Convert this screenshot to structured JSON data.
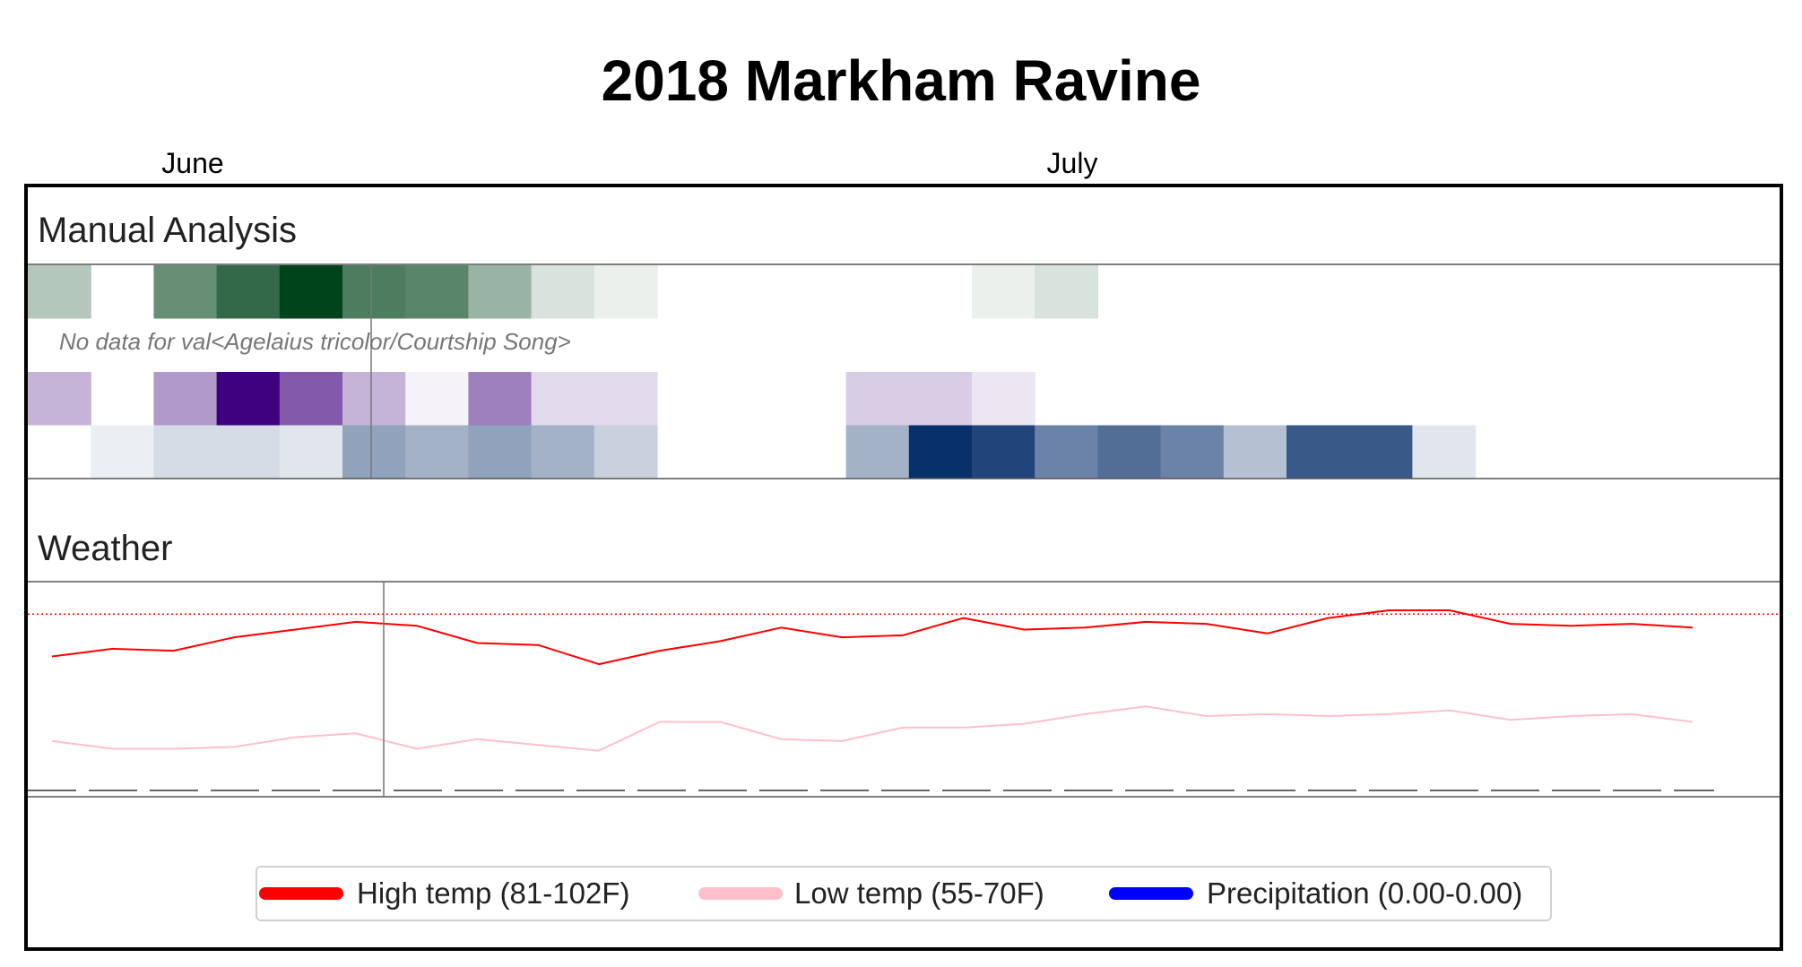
{
  "chart_data": {
    "type": "heatmap",
    "title": "2018 Markham Ravine",
    "month_labels": [
      "June",
      "July"
    ],
    "manual_analysis": {
      "title": "Manual Analysis",
      "no_data_text": "No data for val<Agelaius tricolor/Courtship Song>",
      "rows": [
        {
          "color": "green",
          "values": [
            0.3,
            0.0,
            0.6,
            0.8,
            1.0,
            0.7,
            0.65,
            0.4,
            0.15,
            0.08,
            0.0,
            0.0,
            0.0,
            0.0,
            0.0,
            0.08,
            0.15,
            0.0,
            0.0,
            0.0,
            0.0,
            0.0,
            0.0,
            0.0,
            0.0,
            0.0,
            0.0,
            0.0
          ]
        },
        {
          "color": "none",
          "values": []
        },
        {
          "color": "purple",
          "values": [
            0.3,
            0.0,
            0.4,
            1.0,
            0.65,
            0.3,
            0.05,
            0.5,
            0.15,
            0.15,
            0.0,
            0.0,
            0.0,
            0.2,
            0.2,
            0.1,
            0.0,
            0.0,
            0.0,
            0.0,
            0.0,
            0.0,
            0.0,
            0.0,
            0.0,
            0.0,
            0.0,
            0.0
          ]
        },
        {
          "color": "blue",
          "values": [
            0.0,
            0.08,
            0.17,
            0.17,
            0.12,
            0.45,
            0.37,
            0.45,
            0.37,
            0.22,
            0.0,
            0.0,
            0.0,
            0.37,
            1.0,
            0.9,
            0.6,
            0.7,
            0.6,
            0.3,
            0.8,
            0.8,
            0.12,
            0.0,
            0.0,
            0.0,
            0.0,
            0.0
          ]
        }
      ]
    },
    "weather": {
      "title": "Weather",
      "days": 28,
      "high_temp": [
        86,
        88,
        87.5,
        91,
        93,
        95,
        94,
        89.5,
        89,
        84,
        87.5,
        90,
        93.5,
        91,
        91.5,
        96,
        93,
        93.5,
        95,
        94.5,
        92,
        96,
        98,
        98,
        94.5,
        94,
        94.5,
        93.5
      ],
      "low_temp": [
        64,
        62,
        62,
        62.5,
        65,
        66,
        62,
        64.5,
        63,
        61.5,
        69,
        69,
        64.5,
        64,
        67.5,
        67.5,
        68.5,
        71,
        73,
        70.5,
        71,
        70.5,
        71,
        72,
        69.5,
        70.5,
        71,
        69
      ],
      "precipitation": [
        0,
        0,
        0,
        0,
        0,
        0,
        0,
        0,
        0,
        0,
        0,
        0,
        0,
        0,
        0,
        0,
        0,
        0,
        0,
        0,
        0,
        0,
        0,
        0,
        0,
        0,
        0,
        0
      ],
      "threshold_temp": 97,
      "ylim": [
        50,
        105
      ]
    },
    "legend": [
      {
        "label": "High temp (81-102F)",
        "color": "#ff0000"
      },
      {
        "label": "Low temp (55-70F)",
        "color": "#ffc0cb"
      },
      {
        "label": "Precipitation (0.00-0.00)",
        "color": "#0000ff"
      }
    ],
    "colors": {
      "green": "#00441b",
      "purple": "#3f007d",
      "blue": "#08306b",
      "high_temp": "#ff0000",
      "low_temp": "#ffc0cb",
      "precipitation": "#0000ff"
    }
  }
}
